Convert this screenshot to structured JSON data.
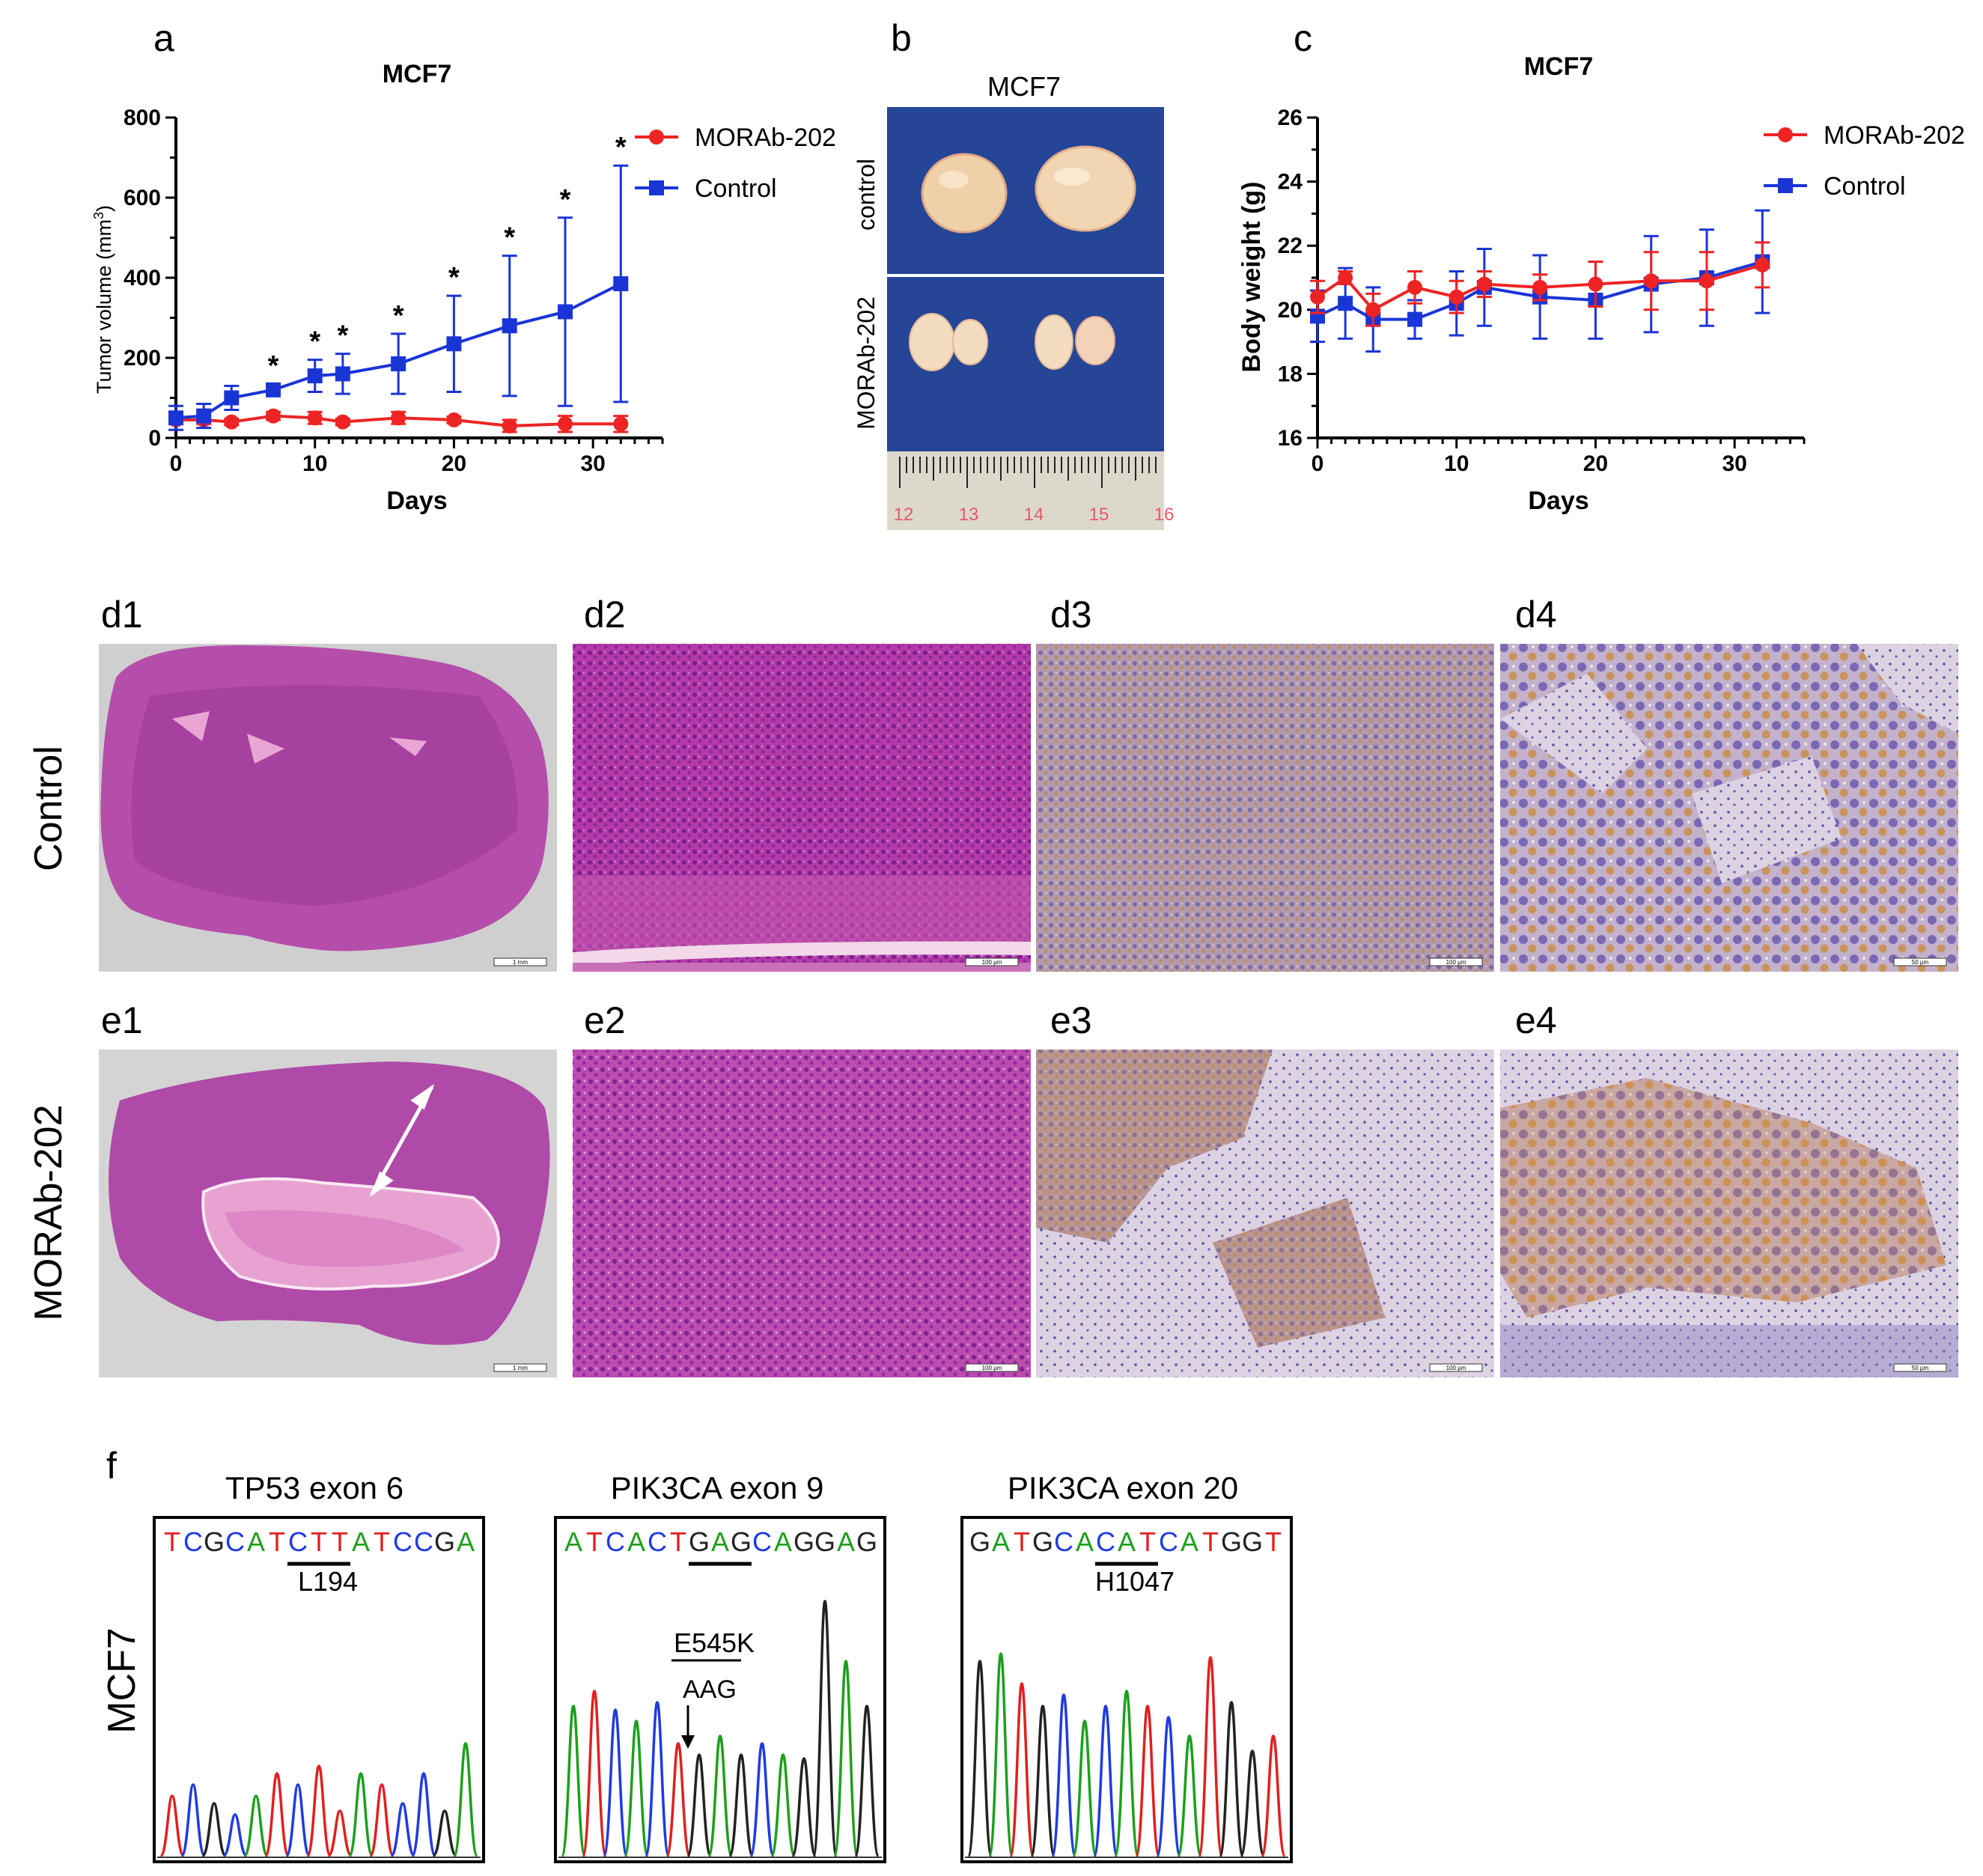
{
  "panel_labels": {
    "a": "a",
    "b": "b",
    "c": "c",
    "d1": "d1",
    "d2": "d2",
    "d3": "d3",
    "d4": "d4",
    "e1": "e1",
    "e2": "e2",
    "e3": "e3",
    "e4": "e4",
    "f": "f"
  },
  "row_labels": {
    "control": "Control",
    "morab": "MORAb-202",
    "mcf7": "MCF7"
  },
  "photo": {
    "title": "MCF7",
    "label_top": "control",
    "label_bottom": "MORAb-202",
    "ruler_labels": [
      "12",
      "13",
      "14",
      "15",
      "16"
    ]
  },
  "scale_bars": {
    "d1": "1 mm",
    "d2": "100 μm",
    "d3": "100 μm",
    "d4": "50 μm",
    "e1": "1 mm",
    "e2": "100 μm",
    "e3": "100 μm",
    "e4": "50 μm"
  },
  "sequencing": {
    "tp53": {
      "title": "TP53 exon 6",
      "seq": "TCGCATCTTATCCGA",
      "codon": "L194"
    },
    "pik_e9": {
      "title": "PIK3CA exon 9",
      "seq": "ATCACTGAGCAGGAG",
      "mutation": "E545K",
      "codon_seq": "AAG"
    },
    "pik_e20": {
      "title": "PIK3CA exon 20",
      "seq": "GATGCACATCATGGT",
      "codon": "H1047"
    }
  },
  "colors": {
    "red": "#ee2424",
    "blue": "#1a35d6",
    "A": "#1ca01c",
    "C": "#1f3be0",
    "G": "#222222",
    "T": "#e02020"
  },
  "chart_data": [
    {
      "type": "line",
      "title": "MCF7",
      "xlabel": "Days",
      "ylabel": "Tumor volume (mm",
      "ylabel_sup": "3",
      "ylabel_end": ")",
      "xlim": [
        0,
        35
      ],
      "ylim": [
        0,
        800
      ],
      "xticks": [
        0,
        10,
        20,
        30
      ],
      "yticks": [
        0,
        200,
        400,
        600,
        800
      ],
      "x": [
        0,
        2,
        4,
        7,
        10,
        12,
        16,
        20,
        24,
        28,
        32
      ],
      "series": [
        {
          "name": "MORAb-202",
          "color": "#ee2424",
          "marker": "circle",
          "values": [
            45,
            45,
            40,
            55,
            50,
            40,
            50,
            45,
            30,
            35,
            35
          ],
          "err": [
            10,
            10,
            8,
            10,
            15,
            8,
            15,
            8,
            15,
            20,
            20
          ]
        },
        {
          "name": "Control",
          "color": "#1a35d6",
          "marker": "square",
          "values": [
            50,
            55,
            100,
            120,
            155,
            160,
            185,
            235,
            280,
            315,
            385
          ],
          "err": [
            30,
            30,
            30,
            15,
            40,
            50,
            75,
            120,
            175,
            235,
            295
          ]
        }
      ],
      "significance": {
        "symbol": "*",
        "x": [
          7,
          10,
          12,
          16,
          20,
          24,
          28,
          32
        ]
      }
    },
    {
      "type": "line",
      "title": "MCF7",
      "xlabel": "Days",
      "ylabel": "Body weight (g)",
      "xlim": [
        0,
        35
      ],
      "ylim": [
        16,
        26
      ],
      "xticks": [
        0,
        10,
        20,
        30
      ],
      "yticks": [
        16,
        18,
        20,
        22,
        24,
        26
      ],
      "x": [
        0,
        2,
        4,
        7,
        10,
        12,
        16,
        20,
        24,
        28,
        32
      ],
      "series": [
        {
          "name": "MORAb-202",
          "color": "#ee2424",
          "marker": "circle",
          "values": [
            20.4,
            21.0,
            20.0,
            20.7,
            20.4,
            20.8,
            20.7,
            20.8,
            20.9,
            20.9,
            21.4
          ],
          "err": [
            0.5,
            0.2,
            0.5,
            0.5,
            0.5,
            0.4,
            0.4,
            0.7,
            0.9,
            0.9,
            0.7
          ]
        },
        {
          "name": "Control",
          "color": "#1a35d6",
          "marker": "square",
          "values": [
            19.8,
            20.2,
            19.7,
            19.7,
            20.2,
            20.7,
            20.4,
            20.3,
            20.8,
            21.0,
            21.5
          ],
          "err": [
            0.8,
            1.1,
            1.0,
            0.6,
            1.0,
            1.2,
            1.3,
            1.2,
            1.5,
            1.5,
            1.6
          ]
        }
      ]
    }
  ]
}
